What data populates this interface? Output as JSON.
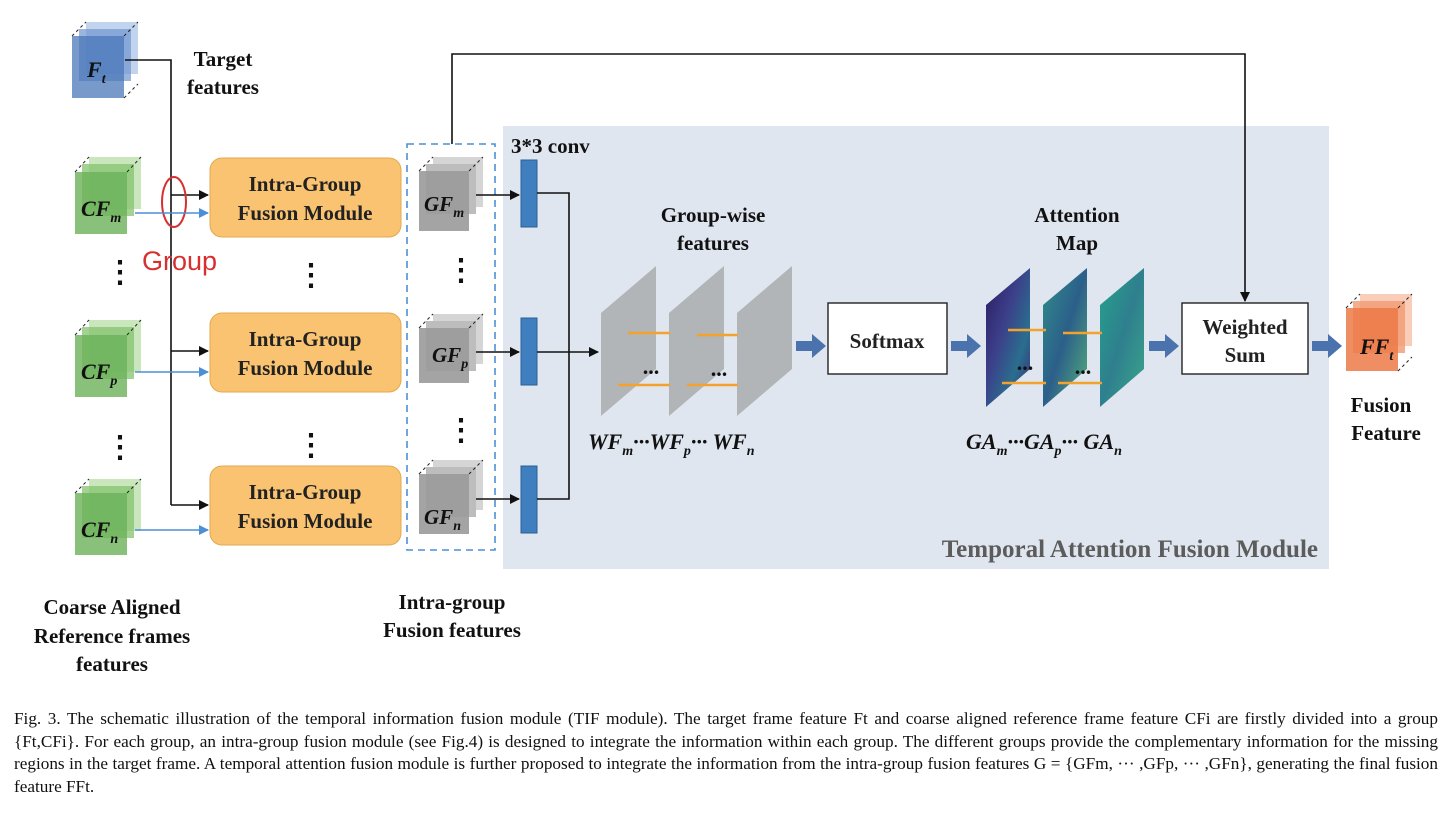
{
  "labels": {
    "target_features_line1": "Target",
    "target_features_line2": "features",
    "group": "Group",
    "coarse_line1": "Coarse Aligned",
    "coarse_line2": "Reference frames",
    "coarse_line3": "features",
    "intra_group_fusion_line1": "Intra-group",
    "intra_group_fusion_line2": "Fusion features",
    "conv": "3*3 conv",
    "group_wise_line1": "Group-wise",
    "group_wise_line2": "features",
    "attention_line1": "Attention",
    "attention_line2": "Map",
    "softmax": "Softmax",
    "weighted_line1": "Weighted",
    "weighted_line2": "Sum",
    "fusion_line1": "Fusion",
    "fusion_line2": "Feature",
    "tafm": "Temporal Attention Fusion Module",
    "wf_sequence": "WFm···WFp··· WFn",
    "ga_sequence": "GAm···GAp··· GAn",
    "ellipsis_h": "...",
    "ellipsis_v": "⋮"
  },
  "modules": [
    {
      "line1": "Intra-Group",
      "line2": "Fusion Module"
    },
    {
      "line1": "Intra-Group",
      "line2": "Fusion Module"
    },
    {
      "line1": "Intra-Group",
      "line2": "Fusion Module"
    }
  ],
  "symbols": {
    "ft": {
      "base": "F",
      "sub": "t"
    },
    "cfm": {
      "base": "CF",
      "sub": "m"
    },
    "cfp": {
      "base": "CF",
      "sub": "p"
    },
    "cfn": {
      "base": "CF",
      "sub": "n"
    },
    "gfm": {
      "base": "GF",
      "sub": "m"
    },
    "gfp": {
      "base": "GF",
      "sub": "p"
    },
    "gfn": {
      "base": "GF",
      "sub": "n"
    },
    "fft": {
      "base": "FF",
      "sub": "t"
    }
  },
  "caption": "Fig. 3.  The schematic illustration of the temporal information fusion module (TIF module). The target frame feature Ft and coarse aligned reference frame feature CFi are firstly divided into a group {Ft,CFi}. For each group, an intra-group fusion module (see Fig.4) is designed to integrate the information within each group. The different groups provide the complementary information for the missing regions in the target frame. A temporal attention fusion module is further proposed to integrate the information from the intra-group fusion features G = {GFm, ··· ,GFp, ··· ,GFn}, generating the final fusion feature FFt.",
  "colors": {
    "target_blue": "#4a78b8",
    "ref_green": "#6cb15a",
    "module_orange": "#f9c372",
    "gf_gray": "#9a9a9a",
    "conv_blue": "#3f7fbf",
    "panel": "#dfe6ef",
    "output_orange": "#ec7a48",
    "arrow_blue": "#4a72ad",
    "group_red": "#d63030"
  }
}
